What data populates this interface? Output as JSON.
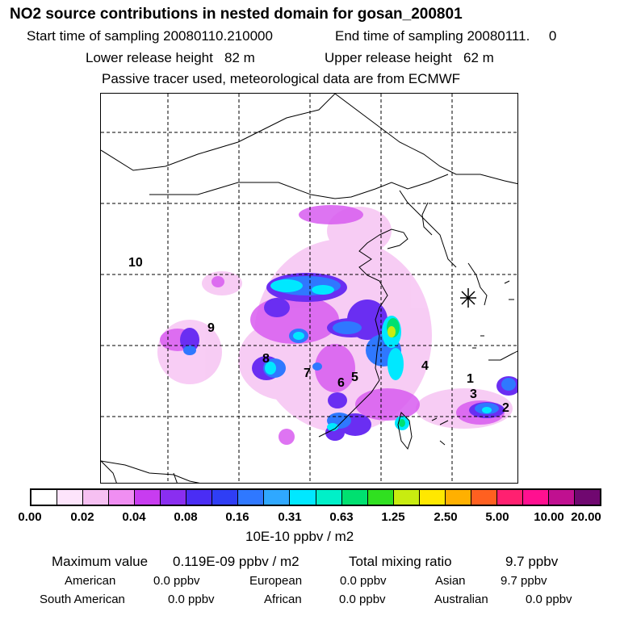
{
  "header": {
    "title": "NO2 source contributions in nested domain for gosan_200801",
    "start_time": "Start time of sampling 20080110.210000",
    "end_time": "End time of sampling 20080111.     0",
    "lower_release": "Lower release height   82 m",
    "upper_release": "Upper release height   62 m",
    "tracer_note": "Passive tracer used, meteorological data are from ECMWF"
  },
  "map": {
    "region_labels": [
      "1",
      "2",
      "3",
      "4",
      "5",
      "6",
      "7",
      "8",
      "9",
      "10"
    ],
    "receptor_marker": "receptor-star"
  },
  "legend": {
    "colors": [
      "#ffffff",
      "#fde4fb",
      "#f6c0f2",
      "#f08ef2",
      "#c83cf0",
      "#8a2ef0",
      "#4a2df4",
      "#2f3ef5",
      "#2f78ff",
      "#2fa8ff",
      "#00e8ff",
      "#00f0c8",
      "#00e070",
      "#30e020",
      "#c8ec10",
      "#ffe800",
      "#ffb000",
      "#ff6020",
      "#ff2070",
      "#ff1090",
      "#c01090",
      "#700870"
    ],
    "tick_labels": [
      "0.00",
      "0.02",
      "0.04",
      "0.08",
      "0.16",
      "0.31",
      "0.63",
      "1.25",
      "2.50",
      "5.00",
      "10.00",
      "20.00"
    ],
    "units": "10E-10 ppbv / m2"
  },
  "stats": {
    "max_label": "Maximum value",
    "max_value": "0.119E-09 ppbv / m2",
    "total_label": "Total mixing ratio",
    "total_value": "9.7 ppbv",
    "regions": [
      {
        "name": "American",
        "value": "0.0 ppbv"
      },
      {
        "name": "European",
        "value": "0.0 ppbv"
      },
      {
        "name": "Asian",
        "value": "9.7 ppbv"
      },
      {
        "name": "South American",
        "value": "0.0 ppbv"
      },
      {
        "name": "African",
        "value": "0.0 ppbv"
      },
      {
        "name": "Australian",
        "value": "0.0 ppbv"
      }
    ]
  }
}
